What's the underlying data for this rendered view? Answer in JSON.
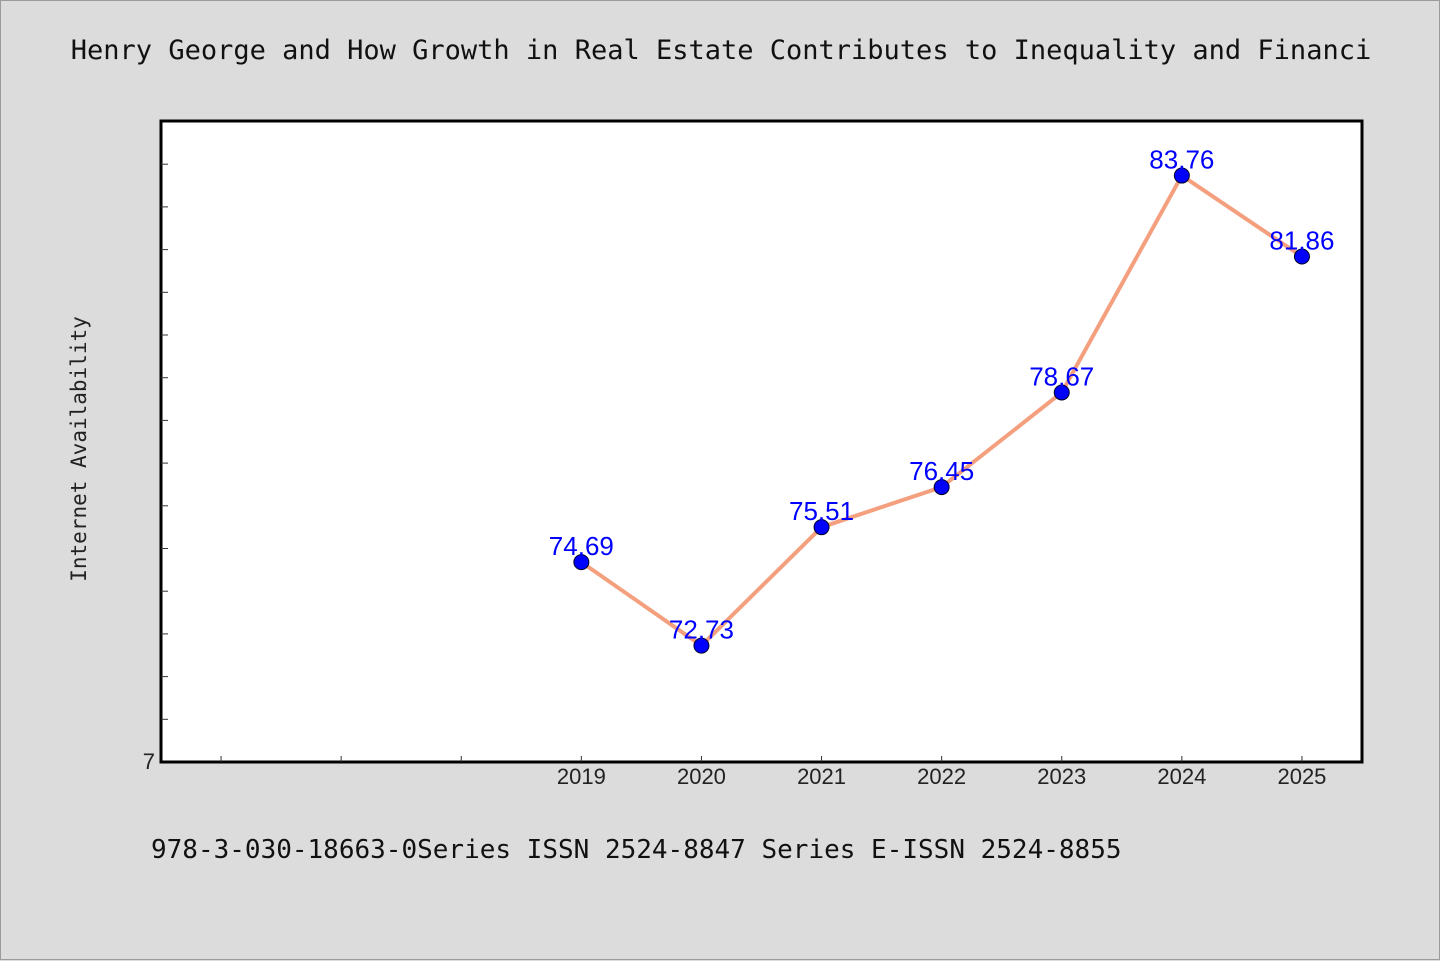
{
  "header": {
    "title": "Henry George and How Growth in Real Estate Contributes to Inequality and Financi"
  },
  "footer": {
    "text": "978-3-030-18663-0Series ISSN 2524-8847 Series E-ISSN 2524-8855"
  },
  "chart_data": {
    "type": "line",
    "title": "Henry George and How Growth in Real Estate Contributes to Inequality and Financi",
    "xlabel": "",
    "ylabel": "Internet Availability",
    "x": [
      2019,
      2020,
      2021,
      2022,
      2023,
      2024,
      2025
    ],
    "y_tick_labels": [
      "7"
    ],
    "series": [
      {
        "values": [
          74.69,
          72.73,
          75.51,
          76.45,
          78.67,
          83.76,
          81.86
        ]
      }
    ],
    "data_labels": [
      "74.69",
      "72.73",
      "75.51",
      "76.45",
      "78.67",
      "83.76",
      "81.86"
    ],
    "xlim": [
      2015.5,
      2025.5
    ],
    "ylim": [
      70.0,
      85.04
    ],
    "grid": false,
    "line_color": "#f4a07e",
    "marker_color": "#0000ff",
    "label_color": "#0000ff"
  }
}
